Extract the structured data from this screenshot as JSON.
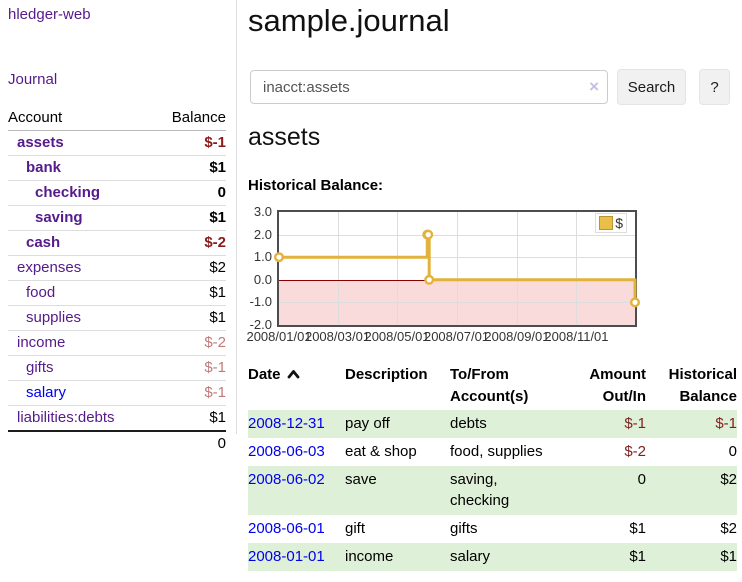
{
  "colors": {
    "link_purple": "#551A8B",
    "link_blue": "#0000EE",
    "negative_strong": "#8B1A1A",
    "negative_soft": "#BE7B7B",
    "negative_table": "#7F1F1F",
    "row_highlight_green": "#DFF0D8",
    "chart_line_gold": "#E2B33C",
    "chart_negative_fill": "#F9DBDB",
    "chart_zero_line": "#8B0000"
  },
  "sidebar": {
    "app_title": "hledger-web",
    "nav_journal": "Journal",
    "accounts_table": {
      "account_header": "Account",
      "balance_header": "Balance",
      "rows": [
        {
          "name": "assets",
          "indent": 0,
          "bold": true,
          "balance": "$-1"
        },
        {
          "name": "bank",
          "indent": 1,
          "bold": true,
          "balance": "$1"
        },
        {
          "name": "checking",
          "indent": 2,
          "bold": true,
          "balance": "0"
        },
        {
          "name": "saving",
          "indent": 2,
          "bold": true,
          "balance": "$1"
        },
        {
          "name": "cash",
          "indent": 1,
          "bold": true,
          "balance": "$-2"
        },
        {
          "name": "expenses",
          "indent": 0,
          "bold": false,
          "balance": "$2"
        },
        {
          "name": "food",
          "indent": 1,
          "bold": false,
          "balance": "$1"
        },
        {
          "name": "supplies",
          "indent": 1,
          "bold": false,
          "balance": "$1"
        },
        {
          "name": "income",
          "indent": 0,
          "bold": false,
          "balance": "$-2"
        },
        {
          "name": "gifts",
          "indent": 1,
          "bold": false,
          "balance": "$-1"
        },
        {
          "name": "salary",
          "indent": 1,
          "bold": false,
          "balance": "$-1",
          "link_color": "blue"
        },
        {
          "name": "liabilities:debts",
          "indent": 0,
          "bold": false,
          "balance": "$1"
        }
      ],
      "total": "0"
    }
  },
  "main": {
    "page_title": "sample.journal",
    "search": {
      "value": "inacct:assets",
      "clear_icon": "×",
      "search_button": "Search",
      "help_button": "?"
    },
    "account_heading": "assets",
    "chart_title": "Historical Balance:"
  },
  "chart_data": {
    "type": "line",
    "step": true,
    "title": "Historical Balance:",
    "legend_position": "top-right",
    "grid": true,
    "xlim": [
      "2008-01-01",
      "2008-12-31"
    ],
    "ylim": [
      -2,
      3
    ],
    "y_ticks": [
      3.0,
      2.0,
      1.0,
      0.0,
      -1.0,
      -2.0
    ],
    "x_tick_labels": [
      "2008/01/01",
      "2008/03/01",
      "2008/05/01",
      "2008/07/01",
      "2008/09/01",
      "2008/11/01"
    ],
    "x_tick_dates": [
      "2008-01-01",
      "2008-03-01",
      "2008-05-01",
      "2008-07-01",
      "2008-09-01",
      "2008-11-01"
    ],
    "series": [
      {
        "name": "$",
        "points": [
          [
            "2008-01-01",
            1
          ],
          [
            "2008-06-01",
            2
          ],
          [
            "2008-06-02",
            2
          ],
          [
            "2008-06-03",
            0
          ],
          [
            "2008-12-31",
            -1
          ]
        ]
      }
    ]
  },
  "register": {
    "headers": {
      "date": "Date",
      "description": "Description",
      "accounts": "To/From Account(s)",
      "amount": "Amount Out/In",
      "balance": "Historical Balance"
    },
    "rows": [
      {
        "date": "2008-12-31",
        "description": "pay off",
        "accounts": "debts",
        "amount": "$-1",
        "balance": "$-1",
        "highlight": true
      },
      {
        "date": "2008-06-03",
        "description": "eat & shop",
        "accounts": "food, supplies",
        "amount": "$-2",
        "balance": "0",
        "highlight": false
      },
      {
        "date": "2008-06-02",
        "description": "save",
        "accounts": "saving, checking",
        "amount": "0",
        "balance": "$2",
        "highlight": true
      },
      {
        "date": "2008-06-01",
        "description": "gift",
        "accounts": "gifts",
        "amount": "$1",
        "balance": "$2",
        "highlight": false
      },
      {
        "date": "2008-01-01",
        "description": "income",
        "accounts": "salary",
        "amount": "$1",
        "balance": "$1",
        "highlight": true
      }
    ]
  }
}
